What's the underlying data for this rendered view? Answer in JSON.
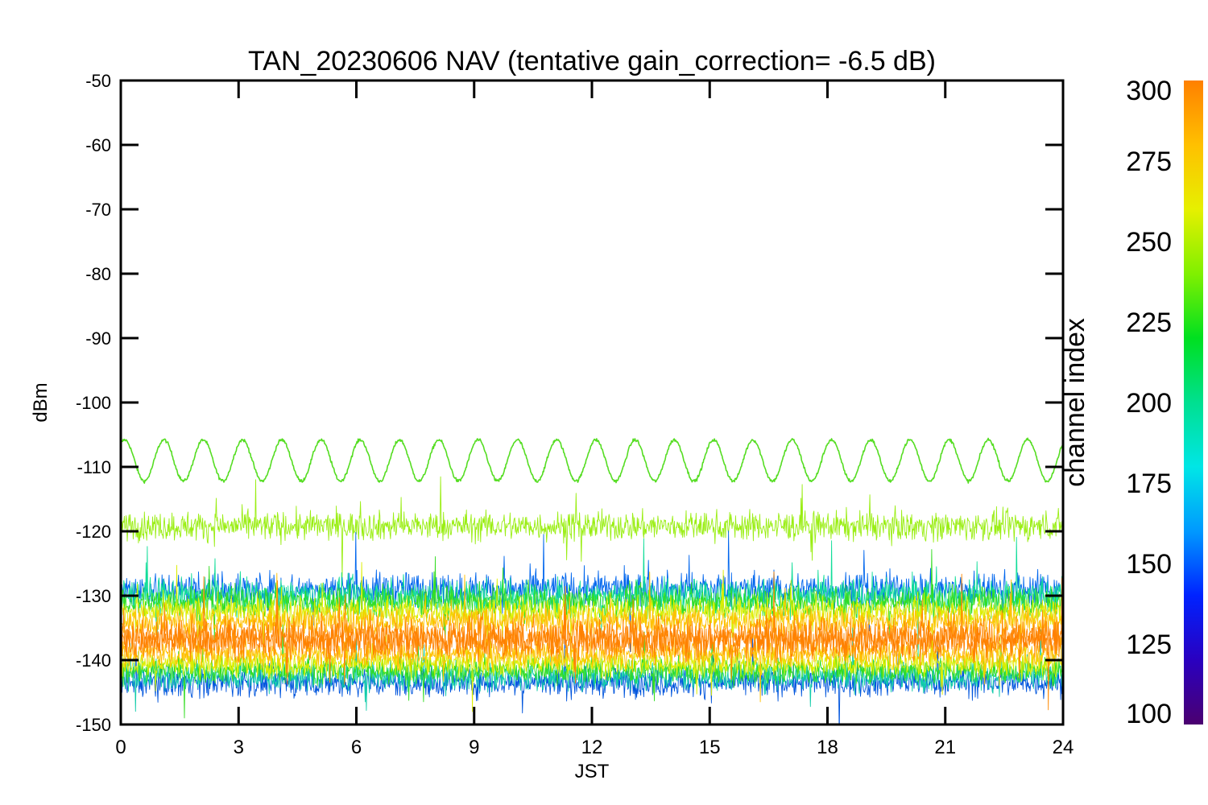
{
  "chart_data": {
    "type": "line",
    "title": "TAN_20230606 NAV (tentative gain_correction= -6.5 dB)",
    "xlabel": "JST",
    "ylabel": "dBm",
    "xlim": [
      0,
      24
    ],
    "ylim": [
      -150,
      -50
    ],
    "x_ticks": [
      "0",
      "3",
      "6",
      "9",
      "12",
      "15",
      "18",
      "21",
      "24"
    ],
    "y_ticks": [
      "-50",
      "-60",
      "-70",
      "-80",
      "-90",
      "-100",
      "-110",
      "-120",
      "-130",
      "-140",
      "-150"
    ],
    "grid": false,
    "colorbar": {
      "label": "channel index",
      "range": [
        100,
        300
      ],
      "ticks": [
        "300",
        "275",
        "250",
        "225",
        "200",
        "175",
        "150",
        "125",
        "100"
      ],
      "colormap": [
        "#4b0070",
        "#2a00c0",
        "#0022ff",
        "#0099ff",
        "#00e6e6",
        "#00e090",
        "#00e020",
        "#80f000",
        "#e6f000",
        "#ffc000",
        "#ff8000"
      ]
    },
    "series": [
      {
        "channel": 245,
        "color": "#55dd22",
        "shape": "periodic",
        "period_hours": 1.0,
        "phase_hours": 0.1,
        "mean_dBm": -109,
        "amplitude_dBm": 3.2,
        "noise_dBm": 0.25
      },
      {
        "channel": 262,
        "color": "#99ee11",
        "shape": "noise",
        "mean_dBm": -119.2,
        "spread_dBm": 2.2
      },
      {
        "channel": 150,
        "color": "#0066ee",
        "shape": "noise",
        "mean_dBm": -129,
        "spread_dBm": 2.6
      },
      {
        "channel": 195,
        "color": "#11dd99",
        "shape": "noise",
        "mean_dBm": -130,
        "spread_dBm": 2.6
      },
      {
        "channel": 240,
        "color": "#33dd22",
        "shape": "noise",
        "mean_dBm": -131,
        "spread_dBm": 2.4
      },
      {
        "channel": 270,
        "color": "#ddee00",
        "shape": "noise",
        "mean_dBm": -132.5,
        "spread_dBm": 2.2
      },
      {
        "channel": 285,
        "color": "#ffc000",
        "shape": "noise",
        "mean_dBm": -134,
        "spread_dBm": 2.2
      },
      {
        "channel": 150,
        "color": "#0055dd",
        "shape": "noise",
        "mean_dBm": -143.5,
        "spread_dBm": 2.2
      },
      {
        "channel": 195,
        "color": "#11ccaa",
        "shape": "noise",
        "mean_dBm": -142.5,
        "spread_dBm": 2.2
      },
      {
        "channel": 240,
        "color": "#33dd22",
        "shape": "noise",
        "mean_dBm": -141.5,
        "spread_dBm": 2
      },
      {
        "channel": 270,
        "color": "#ddee00",
        "shape": "noise",
        "mean_dBm": -140.5,
        "spread_dBm": 2
      },
      {
        "channel": 285,
        "color": "#ffc000",
        "shape": "noise",
        "mean_dBm": -139,
        "spread_dBm": 2
      },
      {
        "channel": 295,
        "color": "#ff8800",
        "shape": "noise",
        "mean_dBm": -136.5,
        "spread_dBm": 3
      },
      {
        "channel": 298,
        "color": "#ff8000",
        "shape": "noise",
        "mean_dBm": -136.8,
        "spread_dBm": 2.8
      }
    ]
  }
}
